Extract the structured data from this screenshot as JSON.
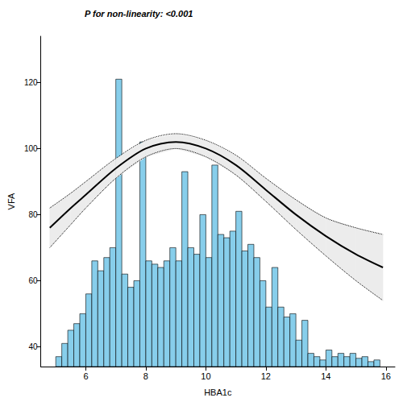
{
  "chart_data": {
    "type": "histogram",
    "title": "P for non-linearity: <0.001",
    "x_label": "HBA1c",
    "y_label": "VFA",
    "xlim": [
      4.5,
      16.3
    ],
    "ylim": [
      34,
      134
    ],
    "xticks": [
      6,
      8,
      10,
      12,
      14,
      16
    ],
    "yticks": [
      40,
      60,
      80,
      100,
      120
    ],
    "grid": false,
    "color": "#87ceeb",
    "bins": [
      5.0,
      5.2,
      5.4,
      5.6,
      5.8,
      6.0,
      6.2,
      6.4,
      6.6,
      6.8,
      7.0,
      7.2,
      7.4,
      7.6,
      7.8,
      8.0,
      8.2,
      8.4,
      8.6,
      8.8,
      9.0,
      9.2,
      9.4,
      9.6,
      9.8,
      10.0,
      10.2,
      10.4,
      10.6,
      10.8,
      11.0,
      11.2,
      11.4,
      11.6,
      11.8,
      12.0,
      12.2,
      12.4,
      12.6,
      12.8,
      13.0,
      13.2,
      13.4,
      13.6,
      13.8,
      14.0,
      14.2,
      14.4,
      14.6,
      14.8,
      15.0,
      15.2,
      15.4,
      15.6,
      15.8
    ],
    "values": [
      37,
      41,
      45,
      47,
      50,
      56,
      66,
      63,
      67,
      70,
      121,
      62,
      58,
      60,
      102,
      66,
      65,
      64,
      66,
      70,
      66,
      93,
      70,
      68,
      80,
      67,
      95,
      74,
      73,
      75,
      81,
      69,
      71,
      67,
      60,
      52,
      64,
      52,
      49,
      50,
      42,
      48,
      38,
      37,
      36,
      39,
      37,
      38,
      37,
      38,
      36.5,
      37,
      35.5,
      36
    ],
    "series": [
      {
        "type": "line",
        "color": "#000000",
        "line_style": "solid",
        "x": [
          4.8,
          5.5,
          6,
          7,
          8,
          9,
          10,
          11,
          12,
          13,
          14,
          15,
          15.9
        ],
        "values": [
          76,
          82,
          86,
          94,
          100,
          102,
          100,
          95,
          87.5,
          80,
          73.5,
          68,
          64
        ],
        "lower": [
          70,
          77,
          82,
          91,
          97.5,
          100,
          97.5,
          92,
          84,
          75.5,
          67.5,
          60,
          54
        ],
        "upper": [
          82,
          86.5,
          90,
          97,
          102.5,
          104.5,
          102.5,
          98,
          91,
          84.5,
          79,
          76,
          74
        ]
      }
    ]
  }
}
